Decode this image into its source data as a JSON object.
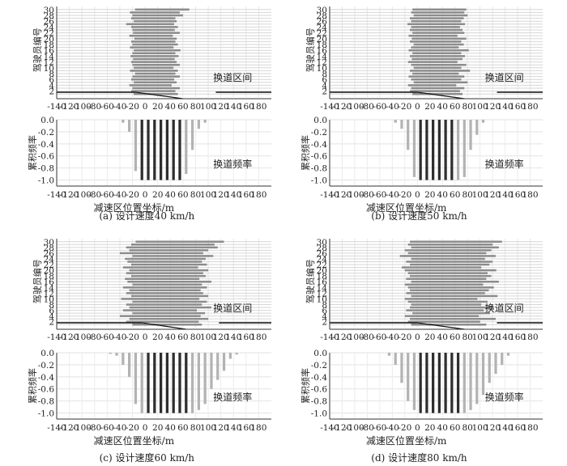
{
  "chart_data": [
    {
      "type": "bar",
      "caption": "(a) 设计速度40 km/h",
      "lane_change": {
        "type": "bar",
        "orientation": "horizontal",
        "series_label": "换道区间",
        "ylabel": "驾驶员编号",
        "yticks": [
          2,
          4,
          6,
          8,
          10,
          12,
          14,
          16,
          18,
          20,
          22,
          24,
          26,
          28,
          30
        ],
        "xticks": [
          -140,
          -120,
          -100,
          -80,
          -60,
          -40,
          -20,
          0,
          20,
          40,
          60,
          80,
          100,
          120,
          140,
          160,
          180
        ],
        "xlim": [
          -140,
          200
        ],
        "intervals": [
          [
            -18,
            52
          ],
          [
            -22,
            48
          ],
          [
            -20,
            55
          ],
          [
            -25,
            42
          ],
          [
            -18,
            50
          ],
          [
            -22,
            46
          ],
          [
            -20,
            55
          ],
          [
            -16,
            48
          ],
          [
            -24,
            52
          ],
          [
            -18,
            45
          ],
          [
            -20,
            55
          ],
          [
            -22,
            50
          ],
          [
            -19,
            47
          ],
          [
            -23,
            53
          ],
          [
            -20,
            48
          ],
          [
            -18,
            56
          ],
          [
            -24,
            45
          ],
          [
            -20,
            52
          ],
          [
            -22,
            48
          ],
          [
            -17,
            50
          ],
          [
            -25,
            44
          ],
          [
            -19,
            55
          ],
          [
            -20,
            47
          ],
          [
            -22,
            52
          ],
          [
            -30,
            46
          ],
          [
            -18,
            50
          ],
          [
            -22,
            48
          ],
          [
            -20,
            60
          ],
          [
            -24,
            55
          ],
          [
            -16,
            70
          ]
        ]
      },
      "cumulative": {
        "type": "bar",
        "series_label": "换道频率",
        "ylabel": "累积频率",
        "yticks": [
          0.0,
          -0.2,
          -0.4,
          -0.6,
          -0.8,
          -1.0
        ],
        "ylim": [
          -1.1,
          0.0
        ],
        "xticks": [
          -140,
          -120,
          -100,
          -80,
          -60,
          -40,
          -20,
          0,
          20,
          40,
          60,
          80,
          100,
          120,
          140,
          160,
          180
        ],
        "xlabel": "减速区位置坐标/m",
        "x": [
          -35,
          -25,
          -15,
          -5,
          5,
          15,
          25,
          35,
          45,
          55,
          65,
          75,
          85,
          95
        ],
        "values": [
          -0.05,
          -0.2,
          -0.85,
          -1.0,
          -1.0,
          -1.0,
          -1.0,
          -1.0,
          -1.0,
          -1.0,
          -0.9,
          -0.5,
          -0.15,
          -0.05
        ],
        "dark_x": [
          -5,
          5,
          15,
          25,
          35,
          45,
          55
        ]
      },
      "start_x": -15,
      "merge_x": 60
    },
    {
      "type": "bar",
      "caption": "(b) 设计速度50 km/h",
      "lane_change": {
        "type": "bar",
        "orientation": "horizontal",
        "series_label": "换道区间",
        "ylabel": "驾驶员编号",
        "yticks": [
          2,
          4,
          6,
          8,
          10,
          12,
          14,
          16,
          18,
          20,
          22,
          24,
          26,
          28,
          30
        ],
        "xticks": [
          -140,
          -120,
          -100,
          -80,
          -60,
          -40,
          -20,
          0,
          20,
          40,
          60,
          80,
          100,
          120,
          140,
          160,
          180
        ],
        "xlim": [
          -140,
          200
        ],
        "intervals": [
          [
            -8,
            72
          ],
          [
            -12,
            68
          ],
          [
            -10,
            75
          ],
          [
            -15,
            62
          ],
          [
            -6,
            80
          ],
          [
            -10,
            70
          ],
          [
            -14,
            75
          ],
          [
            -8,
            66
          ],
          [
            -12,
            84
          ],
          [
            -6,
            70
          ],
          [
            -10,
            78
          ],
          [
            -15,
            64
          ],
          [
            -9,
            72
          ],
          [
            -12,
            76
          ],
          [
            -8,
            70
          ],
          [
            -14,
            82
          ],
          [
            -10,
            66
          ],
          [
            -6,
            74
          ],
          [
            -12,
            70
          ],
          [
            -9,
            78
          ],
          [
            -14,
            64
          ],
          [
            -8,
            75
          ],
          [
            -12,
            72
          ],
          [
            -10,
            68
          ],
          [
            -16,
            76
          ],
          [
            -10,
            70
          ],
          [
            -12,
            74
          ],
          [
            -6,
            80
          ],
          [
            -10,
            75
          ],
          [
            -8,
            78
          ]
        ]
      },
      "cumulative": {
        "type": "bar",
        "series_label": "换道频率",
        "ylabel": "累积频率",
        "yticks": [
          0.0,
          -0.2,
          -0.4,
          -0.6,
          -0.8,
          -1.0
        ],
        "ylim": [
          -1.1,
          0.0
        ],
        "xticks": [
          -140,
          -120,
          -100,
          -80,
          -60,
          -40,
          -20,
          0,
          20,
          40,
          60,
          80,
          100,
          120,
          140,
          160,
          180
        ],
        "xlabel": "减速区位置坐标/m",
        "x": [
          -35,
          -25,
          -15,
          -5,
          5,
          15,
          25,
          35,
          45,
          55,
          65,
          75,
          85,
          95,
          105
        ],
        "values": [
          -0.05,
          -0.15,
          -0.5,
          -0.95,
          -1.0,
          -1.0,
          -1.0,
          -1.0,
          -1.0,
          -1.0,
          -1.0,
          -0.95,
          -0.5,
          -0.25,
          -0.05
        ],
        "dark_x": [
          5,
          15,
          25,
          35,
          45,
          55
        ]
      },
      "start_x": 0,
      "merge_x": 75
    },
    {
      "type": "bar",
      "caption": "(c) 设计速度60 km/h",
      "lane_change": {
        "type": "bar",
        "orientation": "horizontal",
        "series_label": "换道区间",
        "ylabel": "驾驶员编号",
        "yticks": [
          2,
          4,
          6,
          8,
          10,
          12,
          14,
          16,
          18,
          20,
          22,
          24,
          26,
          28,
          30
        ],
        "xticks": [
          -140,
          -120,
          -100,
          -80,
          -60,
          -40,
          -20,
          0,
          20,
          40,
          60,
          80,
          100,
          120,
          140,
          160,
          180
        ],
        "xlim": [
          -140,
          200
        ],
        "intervals": [
          [
            -20,
            90
          ],
          [
            -30,
            85
          ],
          [
            -25,
            100
          ],
          [
            -40,
            88
          ],
          [
            -20,
            95
          ],
          [
            -35,
            82
          ],
          [
            -25,
            105
          ],
          [
            -30,
            90
          ],
          [
            -20,
            98
          ],
          [
            -38,
            86
          ],
          [
            -22,
            100
          ],
          [
            -30,
            92
          ],
          [
            -25,
            88
          ],
          [
            -35,
            98
          ],
          [
            -20,
            90
          ],
          [
            -28,
            105
          ],
          [
            -32,
            86
          ],
          [
            -22,
            96
          ],
          [
            -30,
            92
          ],
          [
            -25,
            100
          ],
          [
            -35,
            84
          ],
          [
            -22,
            98
          ],
          [
            -28,
            90
          ],
          [
            -32,
            96
          ],
          [
            -20,
            108
          ],
          [
            -40,
            92
          ],
          [
            -25,
            100
          ],
          [
            -30,
            115
          ],
          [
            -22,
            110
          ],
          [
            -15,
            125
          ]
        ]
      },
      "cumulative": {
        "type": "bar",
        "series_label": "换道频率",
        "ylabel": "累积频率",
        "yticks": [
          0.0,
          -0.2,
          -0.4,
          -0.6,
          -0.8,
          -1.0
        ],
        "ylim": [
          -1.1,
          0.0
        ],
        "xticks": [
          -140,
          -120,
          -100,
          -80,
          -60,
          -40,
          -20,
          0,
          20,
          40,
          60,
          80,
          100,
          120,
          140,
          160,
          180
        ],
        "xlabel": "减速区位置坐标/m",
        "x": [
          -55,
          -45,
          -35,
          -25,
          -15,
          -5,
          5,
          15,
          25,
          35,
          45,
          55,
          65,
          75,
          85,
          95,
          105,
          115,
          125,
          135,
          145
        ],
        "values": [
          -0.02,
          -0.05,
          -0.2,
          -0.4,
          -0.85,
          -1.0,
          -1.0,
          -1.0,
          -1.0,
          -1.0,
          -1.0,
          -1.0,
          -1.0,
          -1.0,
          -0.95,
          -0.85,
          -0.6,
          -0.45,
          -0.3,
          -0.1,
          -0.03
        ],
        "dark_x": [
          5,
          15,
          25,
          35,
          45,
          55,
          65
        ]
      },
      "start_x": -5,
      "merge_x": 65
    },
    {
      "type": "bar",
      "caption": "(d) 设计速度80 km/h",
      "lane_change": {
        "type": "bar",
        "orientation": "horizontal",
        "series_label": "换道区间",
        "ylabel": "驾驶员编号",
        "yticks": [
          2,
          4,
          6,
          8,
          10,
          12,
          14,
          16,
          18,
          20,
          22,
          24,
          26,
          28,
          30
        ],
        "xticks": [
          -140,
          -120,
          -100,
          -80,
          -60,
          -40,
          -20,
          0,
          20,
          40,
          60,
          80,
          100,
          120,
          140,
          160,
          180
        ],
        "xlim": [
          -140,
          200
        ],
        "intervals": [
          [
            -10,
            110
          ],
          [
            -15,
            100
          ],
          [
            -12,
            125
          ],
          [
            -20,
            98
          ],
          [
            -8,
            116
          ],
          [
            -18,
            106
          ],
          [
            -12,
            120
          ],
          [
            -10,
            102
          ],
          [
            -15,
            112
          ],
          [
            -20,
            96
          ],
          [
            -10,
            128
          ],
          [
            -18,
            108
          ],
          [
            -12,
            114
          ],
          [
            -15,
            122
          ],
          [
            -20,
            105
          ],
          [
            -10,
            130
          ],
          [
            -18,
            110
          ],
          [
            -12,
            118
          ],
          [
            -15,
            112
          ],
          [
            -20,
            126
          ],
          [
            -25,
            102
          ],
          [
            -12,
            115
          ],
          [
            -18,
            120
          ],
          [
            -10,
            108
          ],
          [
            -28,
            125
          ],
          [
            -15,
            110
          ],
          [
            -20,
            118
          ],
          [
            -10,
            130
          ],
          [
            -15,
            120
          ],
          [
            -12,
            135
          ]
        ]
      },
      "cumulative": {
        "type": "bar",
        "series_label": "换道频率",
        "ylabel": "累积频率",
        "yticks": [
          0.0,
          -0.2,
          -0.4,
          -0.6,
          -0.8,
          -1.0
        ],
        "ylim": [
          -1.1,
          0.0
        ],
        "xticks": [
          -140,
          -120,
          -100,
          -80,
          -60,
          -40,
          -20,
          0,
          20,
          40,
          60,
          80,
          100,
          120,
          140,
          160,
          180
        ],
        "xlabel": "减速区位置坐标/m",
        "x": [
          -45,
          -35,
          -25,
          -15,
          -5,
          5,
          15,
          25,
          35,
          45,
          55,
          65,
          75,
          85,
          95,
          105,
          115,
          125,
          135,
          145
        ],
        "values": [
          -0.05,
          -0.2,
          -0.5,
          -0.8,
          -0.95,
          -1.0,
          -1.0,
          -1.0,
          -1.0,
          -1.0,
          -1.0,
          -1.0,
          -1.0,
          -0.95,
          -0.85,
          -0.7,
          -0.5,
          -0.35,
          -0.2,
          -0.05
        ],
        "dark_x": [
          5,
          15,
          25,
          35,
          45,
          55,
          65
        ]
      },
      "start_x": 0,
      "merge_x": 75
    }
  ]
}
